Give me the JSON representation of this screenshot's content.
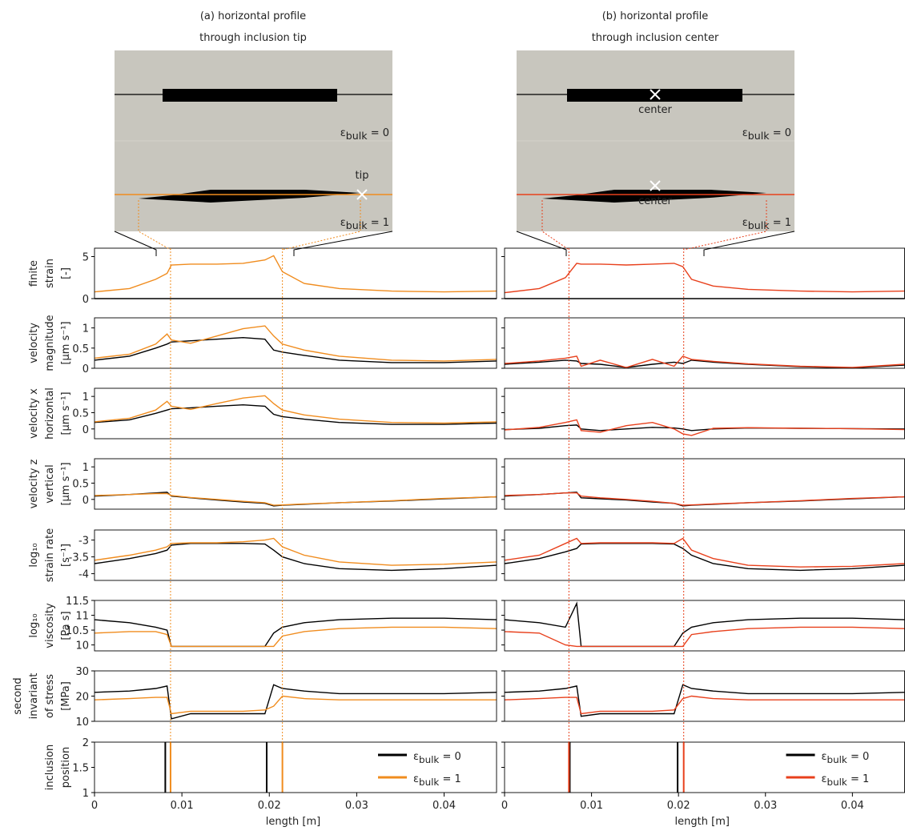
{
  "chart_data": [
    {
      "type": "line",
      "title": [
        "(a) horizontal profile",
        "through inclusion tip"
      ],
      "schematic": {
        "eps": "ε",
        "sub": "bulk",
        "top_rest": " = 0",
        "bottom_rest": " = 1",
        "marker": "tip"
      },
      "x": [
        0,
        0.004,
        0.007,
        0.0083,
        0.0088,
        0.011,
        0.014,
        0.017,
        0.0195,
        0.0205,
        0.0215,
        0.024,
        0.028,
        0.034,
        0.04,
        0.046
      ],
      "xlim": [
        0,
        0.046
      ],
      "xticks": [
        0,
        0.01,
        0.02,
        0.03,
        0.04
      ],
      "xlabel": "length [m]",
      "panels": [
        {
          "ylabel": [
            "finite",
            "strain",
            "[-]"
          ],
          "ylim": [
            0,
            6
          ],
          "yticks": [
            0,
            5
          ],
          "series": [
            {
              "color": "#000000",
              "values": [
                0,
                0,
                0,
                0,
                0,
                0,
                0,
                0,
                0,
                0,
                0,
                0,
                0,
                0,
                0,
                0
              ]
            },
            {
              "color": "#f08c1e",
              "values": [
                0.8,
                1.2,
                2.3,
                3,
                4,
                4.1,
                4.1,
                4.2,
                4.6,
                5.1,
                3.2,
                1.8,
                1.2,
                0.9,
                0.8,
                0.9
              ]
            }
          ]
        },
        {
          "ylabel": [
            "velocity",
            "magnitude",
            "[μm s⁻¹]"
          ],
          "ylim": [
            0,
            1.25
          ],
          "yticks": [
            0,
            0.5,
            1
          ],
          "series": [
            {
              "color": "#000000",
              "values": [
                0.2,
                0.3,
                0.5,
                0.6,
                0.65,
                0.68,
                0.72,
                0.76,
                0.72,
                0.45,
                0.4,
                0.32,
                0.2,
                0.14,
                0.14,
                0.18
              ]
            },
            {
              "color": "#f08c1e",
              "values": [
                0.25,
                0.35,
                0.6,
                0.85,
                0.7,
                0.62,
                0.8,
                0.98,
                1.05,
                0.8,
                0.6,
                0.45,
                0.3,
                0.2,
                0.18,
                0.22
              ]
            }
          ]
        },
        {
          "ylabel": [
            "velocity x",
            "horizontal",
            "[μm s⁻¹]"
          ],
          "ylim": [
            -0.3,
            1.25
          ],
          "yticks": [
            0,
            0.5,
            1
          ],
          "series": [
            {
              "color": "#000000",
              "values": [
                0.2,
                0.28,
                0.48,
                0.58,
                0.62,
                0.65,
                0.7,
                0.74,
                0.7,
                0.45,
                0.38,
                0.3,
                0.2,
                0.14,
                0.14,
                0.18
              ]
            },
            {
              "color": "#f08c1e",
              "values": [
                0.22,
                0.33,
                0.58,
                0.85,
                0.7,
                0.6,
                0.78,
                0.95,
                1.02,
                0.78,
                0.58,
                0.43,
                0.3,
                0.2,
                0.18,
                0.22
              ]
            }
          ]
        },
        {
          "ylabel": [
            "velocity z",
            "vertical",
            "[μm s⁻¹]"
          ],
          "ylim": [
            -0.3,
            1.25
          ],
          "yticks": [
            0,
            0.5,
            1
          ],
          "series": [
            {
              "color": "#000000",
              "values": [
                0.1,
                0.15,
                0.2,
                0.22,
                0.1,
                0.05,
                -0.02,
                -0.08,
                -0.12,
                -0.2,
                -0.18,
                -0.15,
                -0.1,
                -0.05,
                0.02,
                0.08
              ]
            },
            {
              "color": "#f08c1e",
              "values": [
                0.12,
                0.15,
                0.18,
                0.18,
                0.12,
                0.06,
                0,
                -0.06,
                -0.1,
                -0.18,
                -0.17,
                -0.14,
                -0.1,
                -0.04,
                0.03,
                0.08
              ]
            }
          ]
        },
        {
          "ylabel": [
            "log₁₀",
            "strain rate",
            "[s⁻¹]"
          ],
          "ylim": [
            -4.2,
            -2.7
          ],
          "yticks": [
            -3,
            -3.5,
            -4
          ],
          "series": [
            {
              "color": "#000000",
              "values": [
                -3.7,
                -3.55,
                -3.4,
                -3.3,
                -3.15,
                -3.1,
                -3.1,
                -3.1,
                -3.12,
                -3.3,
                -3.5,
                -3.7,
                -3.85,
                -3.9,
                -3.85,
                -3.75
              ]
            },
            {
              "color": "#f08c1e",
              "values": [
                -3.6,
                -3.45,
                -3.3,
                -3.2,
                -3.1,
                -3.08,
                -3.08,
                -3.05,
                -3.0,
                -2.95,
                -3.2,
                -3.45,
                -3.65,
                -3.75,
                -3.72,
                -3.65
              ]
            }
          ]
        },
        {
          "ylabel": [
            "log₁₀",
            "viscosity",
            "[Pa s]"
          ],
          "ylim": [
            9.8,
            11.5
          ],
          "yticks": [
            10,
            10.5,
            11,
            11.5
          ],
          "series": [
            {
              "color": "#000000",
              "values": [
                10.85,
                10.75,
                10.6,
                10.5,
                9.95,
                9.95,
                9.95,
                9.95,
                9.95,
                10.4,
                10.6,
                10.75,
                10.85,
                10.9,
                10.9,
                10.85
              ]
            },
            {
              "color": "#f08c1e",
              "values": [
                10.4,
                10.45,
                10.45,
                10.35,
                9.95,
                9.95,
                9.95,
                9.95,
                9.95,
                9.95,
                10.3,
                10.45,
                10.55,
                10.6,
                10.6,
                10.55
              ]
            }
          ]
        },
        {
          "ylabel": [
            "second",
            "invariant",
            "of stress",
            "[MPa]"
          ],
          "ylim": [
            10,
            30
          ],
          "yticks": [
            10,
            20,
            30
          ],
          "series": [
            {
              "color": "#000000",
              "values": [
                21.5,
                22,
                23,
                24,
                11,
                13,
                13,
                13,
                13,
                24.5,
                23,
                22,
                21,
                21,
                21,
                21.5
              ]
            },
            {
              "color": "#f08c1e",
              "values": [
                18.5,
                19,
                19.5,
                19.5,
                13,
                14,
                14,
                14,
                14.5,
                16,
                20,
                19,
                18.5,
                18.5,
                18.5,
                18.5
              ]
            }
          ]
        }
      ],
      "inclusion": {
        "ylabel": [
          "inclusion",
          "position"
        ],
        "ylim": [
          1,
          2
        ],
        "yticks": [
          1,
          1.5,
          2
        ],
        "edges": [
          {
            "eps": "ε",
            "sub": "bulk",
            "rest": " = 0",
            "color": "#000000",
            "x": [
              0.0081,
              0.0197
            ]
          },
          {
            "eps": "ε",
            "sub": "bulk",
            "rest": " = 1",
            "color": "#f08c1e",
            "x": [
              0.0087,
              0.0215
            ]
          }
        ]
      }
    },
    {
      "type": "line",
      "title": [
        "(b) horizontal profile",
        "through inclusion center"
      ],
      "schematic": {
        "eps": "ε",
        "sub": "bulk",
        "top_rest": " = 0",
        "bottom_rest": " = 1",
        "marker": "center"
      },
      "x": [
        0,
        0.004,
        0.007,
        0.0083,
        0.0088,
        0.011,
        0.014,
        0.017,
        0.0195,
        0.0205,
        0.0215,
        0.024,
        0.028,
        0.034,
        0.04,
        0.046
      ],
      "xlim": [
        0,
        0.046
      ],
      "xticks": [
        0,
        0.01,
        0.02,
        0.03,
        0.04
      ],
      "xlabel": "length [m]",
      "panels": [
        {
          "ylim": [
            0,
            6
          ],
          "yticks": [
            0,
            5
          ],
          "series": [
            {
              "color": "#000000",
              "values": [
                0,
                0,
                0,
                0,
                0,
                0,
                0,
                0,
                0,
                0,
                0,
                0,
                0,
                0,
                0,
                0
              ]
            },
            {
              "color": "#e8401c",
              "values": [
                0.7,
                1.2,
                2.5,
                4.2,
                4.1,
                4.1,
                4,
                4.1,
                4.2,
                3.8,
                2.3,
                1.5,
                1.1,
                0.9,
                0.8,
                0.9
              ]
            }
          ]
        },
        {
          "ylim": [
            0,
            1.25
          ],
          "yticks": [
            0,
            0.5,
            1
          ],
          "series": [
            {
              "color": "#000000",
              "values": [
                0.1,
                0.15,
                0.2,
                0.18,
                0.12,
                0.1,
                0.02,
                0.1,
                0.15,
                0.12,
                0.2,
                0.15,
                0.1,
                0.04,
                0.01,
                0.08
              ]
            },
            {
              "color": "#e8401c",
              "values": [
                0.12,
                0.18,
                0.25,
                0.3,
                0.05,
                0.2,
                0.02,
                0.22,
                0.05,
                0.3,
                0.22,
                0.17,
                0.11,
                0.05,
                0.02,
                0.1
              ]
            }
          ]
        },
        {
          "ylim": [
            -0.3,
            1.25
          ],
          "yticks": [
            0,
            0.5,
            1
          ],
          "series": [
            {
              "color": "#000000",
              "values": [
                -0.02,
                0.02,
                0.1,
                0.12,
                0,
                -0.05,
                0,
                0.05,
                0.03,
                0,
                -0.05,
                0,
                0.03,
                0.02,
                0.01,
                0
              ]
            },
            {
              "color": "#e8401c",
              "values": [
                -0.03,
                0.05,
                0.2,
                0.28,
                -0.05,
                -0.1,
                0.1,
                0.2,
                0,
                -0.15,
                -0.2,
                0.02,
                0.04,
                0.02,
                0.01,
                -0.02
              ]
            }
          ]
        },
        {
          "ylim": [
            -0.3,
            1.25
          ],
          "yticks": [
            0,
            0.5,
            1
          ],
          "series": [
            {
              "color": "#000000",
              "values": [
                0.1,
                0.15,
                0.2,
                0.22,
                0.05,
                0.02,
                -0.02,
                -0.08,
                -0.12,
                -0.2,
                -0.18,
                -0.15,
                -0.1,
                -0.05,
                0.02,
                0.08
              ]
            },
            {
              "color": "#e8401c",
              "values": [
                0.12,
                0.15,
                0.2,
                0.2,
                0.1,
                0.05,
                0,
                -0.06,
                -0.12,
                -0.18,
                -0.17,
                -0.14,
                -0.1,
                -0.04,
                0.03,
                0.08
              ]
            }
          ]
        },
        {
          "ylim": [
            -4.2,
            -2.7
          ],
          "yticks": [
            -3,
            -3.5,
            -4
          ],
          "series": [
            {
              "color": "#000000",
              "values": [
                -3.7,
                -3.55,
                -3.35,
                -3.25,
                -3.12,
                -3.1,
                -3.1,
                -3.1,
                -3.12,
                -3.25,
                -3.45,
                -3.7,
                -3.85,
                -3.9,
                -3.85,
                -3.75
              ]
            },
            {
              "color": "#e8401c",
              "values": [
                -3.6,
                -3.45,
                -3.1,
                -2.95,
                -3.1,
                -3.08,
                -3.08,
                -3.08,
                -3.1,
                -2.95,
                -3.3,
                -3.55,
                -3.75,
                -3.8,
                -3.78,
                -3.7
              ]
            }
          ]
        },
        {
          "ylim": [
            9.8,
            11.5
          ],
          "yticks": [
            10,
            10.5,
            11,
            11.5
          ],
          "series": [
            {
              "color": "#000000",
              "values": [
                10.85,
                10.75,
                10.6,
                11.4,
                9.95,
                9.95,
                9.95,
                9.95,
                9.95,
                10.4,
                10.6,
                10.75,
                10.85,
                10.9,
                10.9,
                10.85
              ]
            },
            {
              "color": "#e8401c",
              "values": [
                10.45,
                10.4,
                10.0,
                9.95,
                9.95,
                9.95,
                9.95,
                9.95,
                9.95,
                9.95,
                10.35,
                10.45,
                10.55,
                10.6,
                10.6,
                10.55
              ]
            }
          ]
        },
        {
          "ylim": [
            10,
            30
          ],
          "yticks": [
            10,
            20,
            30
          ],
          "series": [
            {
              "color": "#000000",
              "values": [
                21.5,
                22,
                23,
                24,
                12,
                13,
                13,
                13,
                13,
                24.5,
                23,
                22,
                21,
                21,
                21,
                21.5
              ]
            },
            {
              "color": "#e8401c",
              "values": [
                18.5,
                19,
                19.5,
                19.5,
                13,
                14,
                14,
                14,
                14.5,
                19,
                20,
                19,
                18.5,
                18.5,
                18.5,
                18.5
              ]
            }
          ]
        }
      ],
      "inclusion": {
        "ylim": [
          1,
          2
        ],
        "yticks": [
          1,
          1.5,
          2
        ],
        "edges": [
          {
            "eps": "ε",
            "sub": "bulk",
            "rest": " = 0",
            "color": "#000000",
            "x": [
              0.0075,
              0.0199
            ]
          },
          {
            "eps": "ε",
            "sub": "bulk",
            "rest": " = 1",
            "color": "#e8401c",
            "x": [
              0.0074,
              0.0206
            ]
          }
        ]
      }
    }
  ]
}
